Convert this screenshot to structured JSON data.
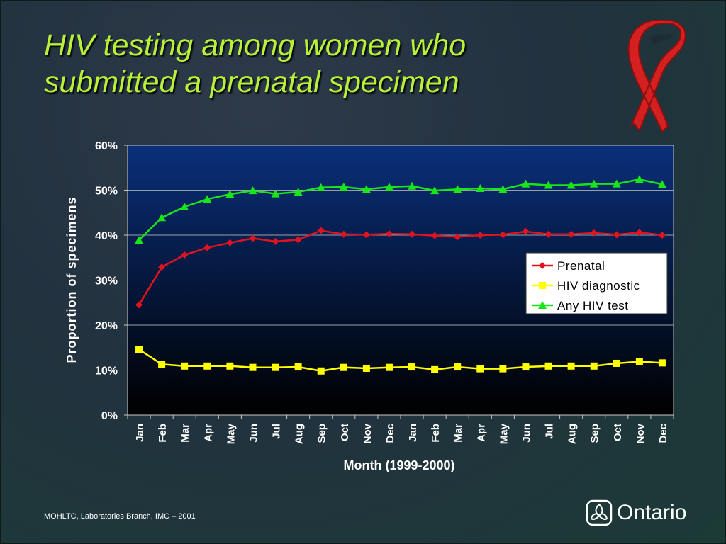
{
  "title_line1": "HIV testing among women who",
  "title_line2": "submitted a prenatal specimen",
  "footer": "MOHLTC, Laboratories Branch, IMC – 2001",
  "logo_text": "Ontario",
  "icons": [
    "red-ribbon-icon",
    "trillium-icon"
  ],
  "colors": {
    "title": "#b7f13a",
    "plot_top": "#0a2f7a",
    "plot_bottom": "#000000",
    "prenatal": "#e0141e",
    "hiv_diagnostic": "#ffff00",
    "any_hiv_test": "#19e619",
    "ribbon": "#d42020"
  },
  "chart_data": {
    "type": "line",
    "title": "",
    "xlabel": "Month (1999-2000)",
    "ylabel": "Proportion of specimens",
    "ylim": [
      0,
      60
    ],
    "yticks": [
      "0%",
      "10%",
      "20%",
      "30%",
      "40%",
      "50%",
      "60%"
    ],
    "grid": "horizontal",
    "legend_position": "right",
    "categories": [
      "Jan",
      "Feb",
      "Mar",
      "Apr",
      "May",
      "Jun",
      "Jul",
      "Aug",
      "Sep",
      "Oct",
      "Nov",
      "Dec",
      "Jan",
      "Feb",
      "Mar",
      "Apr",
      "May",
      "Jun",
      "Jul",
      "Aug",
      "Sep",
      "Oct",
      "Nov",
      "Dec"
    ],
    "series": [
      {
        "name": "Prenatal",
        "color": "#e0141e",
        "marker": "diamond",
        "values": [
          24.5,
          32.9,
          35.6,
          37.2,
          38.3,
          39.3,
          38.6,
          39.0,
          41.0,
          40.2,
          40.1,
          40.3,
          40.2,
          39.9,
          39.6,
          40.0,
          40.1,
          40.8,
          40.2,
          40.2,
          40.5,
          40.1,
          40.6,
          40.0
        ]
      },
      {
        "name": "HIV diagnostic",
        "color": "#ffff00",
        "marker": "square",
        "values": [
          14.6,
          11.3,
          10.9,
          10.9,
          10.9,
          10.6,
          10.6,
          10.7,
          9.8,
          10.6,
          10.4,
          10.6,
          10.7,
          10.1,
          10.7,
          10.3,
          10.3,
          10.7,
          10.9,
          10.9,
          10.9,
          11.5,
          11.9,
          11.6
        ]
      },
      {
        "name": "Any HIV test",
        "color": "#19e619",
        "marker": "triangle",
        "values": [
          38.9,
          43.9,
          46.3,
          48.0,
          49.1,
          49.9,
          49.2,
          49.6,
          50.6,
          50.7,
          50.2,
          50.7,
          50.9,
          49.9,
          50.2,
          50.4,
          50.2,
          51.4,
          51.1,
          51.1,
          51.4,
          51.4,
          52.4,
          51.3
        ]
      }
    ]
  }
}
